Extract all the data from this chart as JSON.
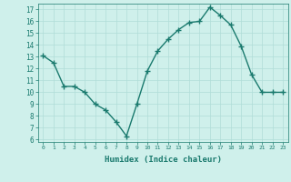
{
  "x": [
    0,
    1,
    2,
    3,
    4,
    5,
    6,
    7,
    8,
    9,
    10,
    11,
    12,
    13,
    14,
    15,
    16,
    17,
    18,
    19,
    20,
    21,
    22,
    23
  ],
  "y": [
    13.1,
    12.5,
    10.5,
    10.5,
    10.0,
    9.0,
    8.5,
    7.5,
    6.3,
    9.0,
    11.8,
    13.5,
    14.5,
    15.3,
    15.9,
    16.0,
    17.2,
    16.5,
    15.7,
    13.9,
    11.5,
    10.0,
    10.0,
    10.0
  ],
  "xlabel": "Humidex (Indice chaleur)",
  "ylim": [
    5.8,
    17.5
  ],
  "yticks": [
    6,
    7,
    8,
    9,
    10,
    11,
    12,
    13,
    14,
    15,
    16,
    17
  ],
  "xticks": [
    0,
    1,
    2,
    3,
    4,
    5,
    6,
    7,
    8,
    9,
    10,
    11,
    12,
    13,
    14,
    15,
    16,
    17,
    18,
    19,
    20,
    21,
    22,
    23
  ],
  "xtick_labels": [
    "0",
    "1",
    "2",
    "3",
    "4",
    "5",
    "6",
    "7",
    "8",
    "9",
    "10",
    "11",
    "12",
    "13",
    "14",
    "15",
    "16",
    "17",
    "18",
    "19",
    "20",
    "21",
    "22",
    "23"
  ],
  "line_color": "#1a7a6e",
  "marker": "+",
  "bg_color": "#cff0eb",
  "grid_color": "#b0ddd8",
  "axis_label_color": "#1a7a6e",
  "tick_color": "#1a7a6e",
  "marker_size": 4,
  "linewidth": 1.0
}
